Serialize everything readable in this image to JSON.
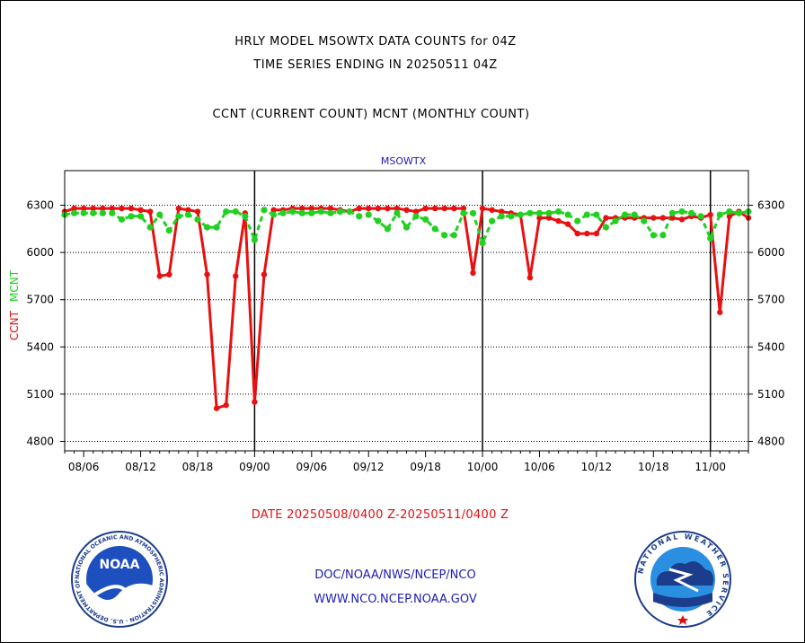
{
  "header": {
    "title_line1": "HRLY MODEL MSOWTX DATA COUNTS for 04Z",
    "title_line2": "TIME SERIES ENDING IN 20250511 04Z",
    "subtitle": "CCNT (CURRENT COUNT) MCNT (MONTHLY COUNT)"
  },
  "footer": {
    "date_range": "DATE 20250508/0400 Z-20250511/0400 Z",
    "org_path": "DOC/NOAA/NWS/NCEP/NCO",
    "website": "WWW.NCO.NCEP.NOAA.GOV"
  },
  "logos": {
    "noaa_label": "NOAA",
    "noaa_ring_text": "NATIONAL OCEANIC AND ATMOSPHERIC ADMINISTRATION · U.S. DEPARTMENT OF COMMERCE",
    "nws_ring_text": "NATIONAL WEATHER SERVICE"
  },
  "colors": {
    "ccnt": "#e81010",
    "mcnt": "#22d022",
    "title_blue": "#1c1cb4",
    "axis": "#000000"
  },
  "chart_data": {
    "type": "line",
    "series_label": "MSOWTX",
    "ylabel_left": [
      "CCNT",
      "MCNT"
    ],
    "yticks": [
      4800,
      5100,
      5400,
      5700,
      6000,
      6300
    ],
    "ylim": [
      4740,
      6520
    ],
    "xticks": [
      "08/06",
      "08/12",
      "08/18",
      "09/00",
      "09/06",
      "09/12",
      "09/18",
      "10/00",
      "10/06",
      "10/12",
      "10/18",
      "11/00"
    ],
    "xtick_hours": [
      6,
      12,
      18,
      24,
      30,
      36,
      42,
      48,
      54,
      60,
      66,
      72
    ],
    "xlim": [
      4,
      76
    ],
    "day_separators": [
      24,
      48,
      72
    ],
    "grid": "horizontal dotted",
    "series": [
      {
        "name": "CCNT",
        "color": "#e81010",
        "x": [
          4,
          5,
          6,
          7,
          8,
          9,
          10,
          11,
          12,
          13,
          14,
          15,
          16,
          17,
          18,
          19,
          20,
          21,
          22,
          23,
          24,
          25,
          26,
          27,
          28,
          29,
          30,
          31,
          32,
          33,
          34,
          35,
          36,
          37,
          38,
          39,
          40,
          41,
          42,
          43,
          44,
          45,
          46,
          47,
          48,
          49,
          50,
          51,
          52,
          53,
          54,
          55,
          56,
          57,
          58,
          59,
          60,
          61,
          62,
          63,
          64,
          65,
          66,
          67,
          68,
          69,
          70,
          71,
          72,
          73,
          74,
          75,
          76
        ],
        "values": [
          6260,
          6280,
          6280,
          6280,
          6280,
          6280,
          6280,
          6280,
          6270,
          6260,
          5850,
          5860,
          6280,
          6270,
          6260,
          5860,
          5010,
          5030,
          5850,
          6250,
          5050,
          5860,
          6270,
          6270,
          6280,
          6280,
          6280,
          6280,
          6280,
          6270,
          6260,
          6280,
          6280,
          6280,
          6280,
          6280,
          6270,
          6260,
          6280,
          6280,
          6280,
          6280,
          6280,
          5870,
          6280,
          6270,
          6260,
          6250,
          6240,
          5840,
          6220,
          6220,
          6200,
          6180,
          6120,
          6120,
          6120,
          6220,
          6220,
          6220,
          6220,
          6220,
          6220,
          6220,
          6220,
          6210,
          6230,
          6220,
          6240,
          5620,
          6230,
          6260,
          6220
        ]
      },
      {
        "name": "MCNT",
        "color": "#22d022",
        "x": [
          4,
          5,
          6,
          7,
          8,
          9,
          10,
          11,
          12,
          13,
          14,
          15,
          16,
          17,
          18,
          19,
          20,
          21,
          22,
          23,
          24,
          25,
          26,
          27,
          28,
          29,
          30,
          31,
          32,
          33,
          34,
          35,
          36,
          37,
          38,
          39,
          40,
          41,
          42,
          43,
          44,
          45,
          46,
          47,
          48,
          49,
          50,
          51,
          52,
          53,
          54,
          55,
          56,
          57,
          58,
          59,
          60,
          61,
          62,
          63,
          64,
          65,
          66,
          67,
          68,
          69,
          70,
          71,
          72,
          73,
          74,
          75,
          76
        ],
        "values": [
          6240,
          6250,
          6250,
          6250,
          6250,
          6250,
          6210,
          6230,
          6230,
          6160,
          6240,
          6140,
          6230,
          6240,
          6210,
          6160,
          6160,
          6260,
          6260,
          6230,
          6080,
          6270,
          6240,
          6250,
          6260,
          6250,
          6250,
          6260,
          6250,
          6260,
          6260,
          6230,
          6240,
          6200,
          6150,
          6250,
          6160,
          6230,
          6210,
          6150,
          6110,
          6110,
          6250,
          6250,
          6060,
          6200,
          6230,
          6230,
          6240,
          6250,
          6250,
          6250,
          6260,
          6240,
          6200,
          6240,
          6240,
          6160,
          6200,
          6240,
          6240,
          6200,
          6110,
          6110,
          6250,
          6260,
          6250,
          6230,
          6090,
          6240,
          6260,
          6250,
          6260
        ]
      }
    ]
  }
}
